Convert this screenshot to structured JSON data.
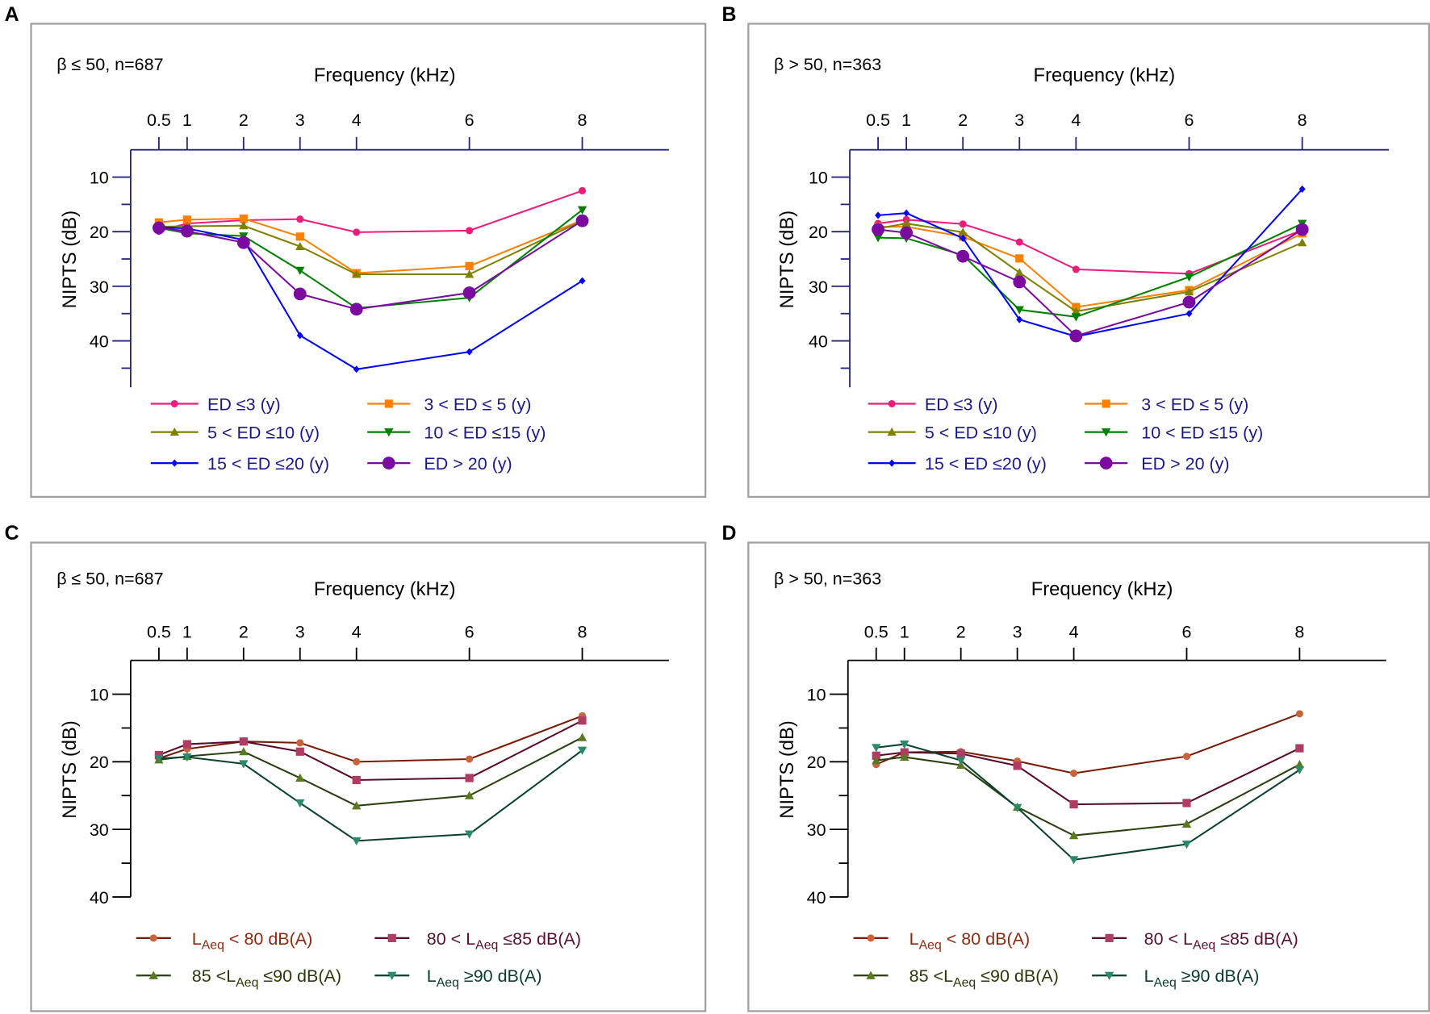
{
  "figure_labels": [
    "A",
    "B",
    "C",
    "D"
  ],
  "chart_data": [
    {
      "panel": "A",
      "type": "line",
      "annotation": "β ≤ 50, n=687",
      "xlabel": "Frequency (kHz)",
      "ylabel": "NIPTS (dB)",
      "x": [
        0.5,
        1,
        2,
        3,
        4,
        6,
        8
      ],
      "xticks": [
        "0.5",
        "1",
        "2",
        "3",
        "4",
        "6",
        "8"
      ],
      "yticks": [
        "10",
        "20",
        "30",
        "40"
      ],
      "xlim": [
        0,
        9
      ],
      "ylim": [
        5,
        48.5
      ],
      "y_inverted": true,
      "x_axis_position": "top",
      "grid": false,
      "legend_position": "bottom",
      "axis_color": "#25257a",
      "legend_text_color": "#1a1a8a",
      "series": [
        {
          "name": "ED ≤3 (y)",
          "color": "#ee1b7a",
          "marker": "circle",
          "values": [
            19.9,
            18.5,
            17.9,
            17.7,
            20.1,
            19.8,
            12.5
          ]
        },
        {
          "name": "3 < ED ≤ 5 (y)",
          "color": "#ff8000",
          "marker": "square",
          "values": [
            18.3,
            17.8,
            17.6,
            20.9,
            27.6,
            26.3,
            17.9
          ]
        },
        {
          "name": "5 < ED ≤10 (y)",
          "color": "#808000",
          "marker": "triangle-up",
          "values": [
            19.1,
            19.0,
            18.9,
            22.7,
            27.8,
            27.8,
            18.0
          ]
        },
        {
          "name": "10 < ED ≤15 (y)",
          "color": "#008000",
          "marker": "triangle-down",
          "values": [
            19.3,
            20.3,
            20.8,
            27.1,
            34.0,
            32.1,
            16.0
          ]
        },
        {
          "name": "15 < ED ≤20 (y)",
          "color": "#0000ff",
          "marker": "diamond",
          "values": [
            19.2,
            19.4,
            21.5,
            39.0,
            45.2,
            42.0,
            29.0
          ]
        },
        {
          "name": "ED > 20 (y)",
          "color": "#7a0aa0",
          "marker": "ring",
          "values": [
            19.3,
            19.9,
            22.0,
            31.4,
            34.2,
            31.2,
            18.0
          ]
        }
      ]
    },
    {
      "panel": "B",
      "type": "line",
      "annotation": "β > 50, n=363",
      "xlabel": "Frequency (kHz)",
      "ylabel": "NIPTS (dB)",
      "x": [
        0.5,
        1,
        2,
        3,
        4,
        6,
        8
      ],
      "xticks": [
        "0.5",
        "1",
        "2",
        "3",
        "4",
        "6",
        "8"
      ],
      "yticks": [
        "10",
        "20",
        "30",
        "40"
      ],
      "xlim": [
        0,
        9
      ],
      "ylim": [
        5,
        48.5
      ],
      "y_inverted": true,
      "x_axis_position": "top",
      "grid": false,
      "legend_position": "bottom",
      "axis_color": "#25257a",
      "legend_text_color": "#1a1a8a",
      "series": [
        {
          "name": "ED ≤3 (y)",
          "color": "#ee1b7a",
          "marker": "circle",
          "values": [
            18.5,
            17.8,
            18.6,
            21.9,
            26.9,
            27.7,
            19.7
          ]
        },
        {
          "name": "3 < ED ≤ 5 (y)",
          "color": "#ff8000",
          "marker": "square",
          "values": [
            19.1,
            19.1,
            20.9,
            24.9,
            33.8,
            30.7,
            20.3
          ]
        },
        {
          "name": "5 < ED ≤10 (y)",
          "color": "#808000",
          "marker": "triangle-up",
          "values": [
            19.4,
            18.5,
            20.1,
            27.5,
            34.6,
            31.0,
            22.0
          ]
        },
        {
          "name": "10 < ED ≤15 (y)",
          "color": "#008000",
          "marker": "triangle-down",
          "values": [
            21.1,
            21.2,
            24.3,
            34.3,
            35.6,
            28.3,
            18.5
          ]
        },
        {
          "name": "15 < ED ≤20 (y)",
          "color": "#0000ff",
          "marker": "diamond",
          "values": [
            17.0,
            16.6,
            21.2,
            36.1,
            39.2,
            35.0,
            12.2
          ]
        },
        {
          "name": "ED > 20 (y)",
          "color": "#7a0aa0",
          "marker": "ring",
          "values": [
            19.6,
            20.2,
            24.5,
            29.2,
            39.1,
            32.9,
            19.6
          ]
        }
      ]
    },
    {
      "panel": "C",
      "type": "line",
      "annotation": "β ≤ 50, n=687",
      "xlabel": "Frequency (kHz)",
      "ylabel": "NIPTS (dB)",
      "x": [
        0.5,
        1,
        2,
        3,
        4,
        6,
        8
      ],
      "xticks": [
        "0.5",
        "1",
        "2",
        "3",
        "4",
        "6",
        "8"
      ],
      "yticks": [
        "10",
        "20",
        "30",
        "40"
      ],
      "xlim": [
        0,
        9
      ],
      "ylim": [
        5,
        40
      ],
      "y_inverted": true,
      "x_axis_position": "top",
      "grid": false,
      "legend_position": "bottom",
      "axis_color": "#000000",
      "series": [
        {
          "name": {
            "pre": "",
            "base": "L",
            "sub": "Aeq",
            "post": " < 80 dB(A)"
          },
          "color": "#7a1a05",
          "marker_color": "#c8643c",
          "text_color": "#8b2a10",
          "marker": "circle",
          "values": [
            19.5,
            18.1,
            17.0,
            17.2,
            20.0,
            19.6,
            13.2
          ]
        },
        {
          "name": {
            "pre": "80 < ",
            "base": "L",
            "sub": "Aeq",
            "post": " ≤85 dB(A)"
          },
          "color": "#5a0a2a",
          "marker_color": "#b03c64",
          "text_color": "#5a1030",
          "marker": "square",
          "values": [
            19.0,
            17.4,
            17.0,
            18.5,
            22.7,
            22.4,
            13.9
          ]
        },
        {
          "name": {
            "pre": "85 <",
            "base": "L",
            "sub": "Aeq",
            "post": " ≤90 dB(A)"
          },
          "color": "#2a4010",
          "marker_color": "#5a7a20",
          "text_color": "#2a3a0a",
          "marker": "triangle-up",
          "values": [
            19.7,
            19.2,
            18.5,
            22.4,
            26.5,
            25.0,
            16.4
          ]
        },
        {
          "name": {
            "pre": "",
            "base": "L",
            "sub": "Aeq",
            "post": " ≥90 dB(A)"
          },
          "color": "#0a4030",
          "marker_color": "#2a8a6a",
          "text_color": "#0a3a30",
          "marker": "triangle-down",
          "values": [
            19.5,
            19.3,
            20.3,
            26.1,
            31.7,
            30.7,
            18.3
          ]
        }
      ]
    },
    {
      "panel": "D",
      "type": "line",
      "annotation": "β > 50, n=363",
      "xlabel": "Frequency (kHz)",
      "ylabel": "NIPTS (dB)",
      "x": [
        0.5,
        1,
        2,
        3,
        4,
        6,
        8
      ],
      "xticks": [
        "0.5",
        "1",
        "2",
        "3",
        "4",
        "6",
        "8"
      ],
      "yticks": [
        "10",
        "20",
        "30",
        "40"
      ],
      "xlim": [
        0,
        9
      ],
      "ylim": [
        5,
        40
      ],
      "y_inverted": true,
      "x_axis_position": "top",
      "grid": false,
      "legend_position": "bottom",
      "axis_color": "#000000",
      "series": [
        {
          "name": {
            "pre": "",
            "base": "L",
            "sub": "Aeq",
            "post": " < 80 dB(A)"
          },
          "color": "#7a1a05",
          "marker_color": "#c8643c",
          "text_color": "#8b2a10",
          "marker": "circle",
          "values": [
            20.4,
            18.6,
            18.5,
            19.9,
            21.7,
            19.2,
            12.9
          ]
        },
        {
          "name": {
            "pre": "80 < ",
            "base": "L",
            "sub": "Aeq",
            "post": " ≤85 dB(A)"
          },
          "color": "#5a0a2a",
          "marker_color": "#b03c64",
          "text_color": "#5a1030",
          "marker": "square",
          "values": [
            19.1,
            18.6,
            18.8,
            20.6,
            26.3,
            26.1,
            18.0
          ]
        },
        {
          "name": {
            "pre": "85 <",
            "base": "L",
            "sub": "Aeq",
            "post": " ≤90 dB(A)"
          },
          "color": "#2a4010",
          "marker_color": "#5a7a20",
          "text_color": "#2a3a0a",
          "marker": "triangle-up",
          "values": [
            19.8,
            19.3,
            20.5,
            26.7,
            30.9,
            29.2,
            20.4
          ]
        },
        {
          "name": {
            "pre": "",
            "base": "L",
            "sub": "Aeq",
            "post": " ≥90 dB(A)"
          },
          "color": "#0a4030",
          "marker_color": "#2a8a6a",
          "text_color": "#0a3a30",
          "marker": "triangle-down",
          "values": [
            17.9,
            17.4,
            19.8,
            26.8,
            34.5,
            32.2,
            21.2
          ]
        }
      ]
    }
  ]
}
